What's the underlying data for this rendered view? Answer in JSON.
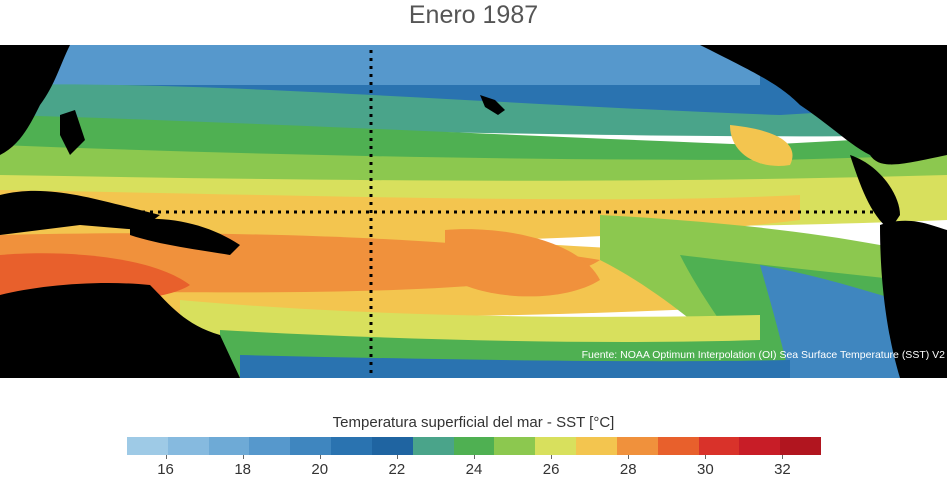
{
  "title": "Enero 1987",
  "source": "Fuente: NOAA Optimum Interpolation (OI) Sea Surface Temperature (SST) V2",
  "colorbar": {
    "title": "Temperatura superficial del mar - SST  [°C]",
    "min": 15,
    "max": 33,
    "colors": [
      "#9ecae6",
      "#86badf",
      "#6eaad6",
      "#5698cc",
      "#3f86bf",
      "#2a73b0",
      "#1f64a1",
      "#4aa48a",
      "#4fb052",
      "#8cc84f",
      "#d8e05d",
      "#f3c54f",
      "#f0913c",
      "#e8602c",
      "#d9322a",
      "#c81d27",
      "#b1151f"
    ],
    "ticks": [
      16,
      18,
      20,
      22,
      24,
      26,
      28,
      30,
      32
    ]
  },
  "map_colors": {
    "land": "#000000",
    "cold": "#2a73b0",
    "cool": "#3f86bf",
    "teal": "#4aa48a",
    "green": "#4fb052",
    "lightgreen": "#8cc84f",
    "yellow": "#d8e05d",
    "gold": "#f3c54f",
    "orange": "#f0913c",
    "red": "#e8602c",
    "darkred": "#d9322a",
    "gridline": "#000000"
  }
}
